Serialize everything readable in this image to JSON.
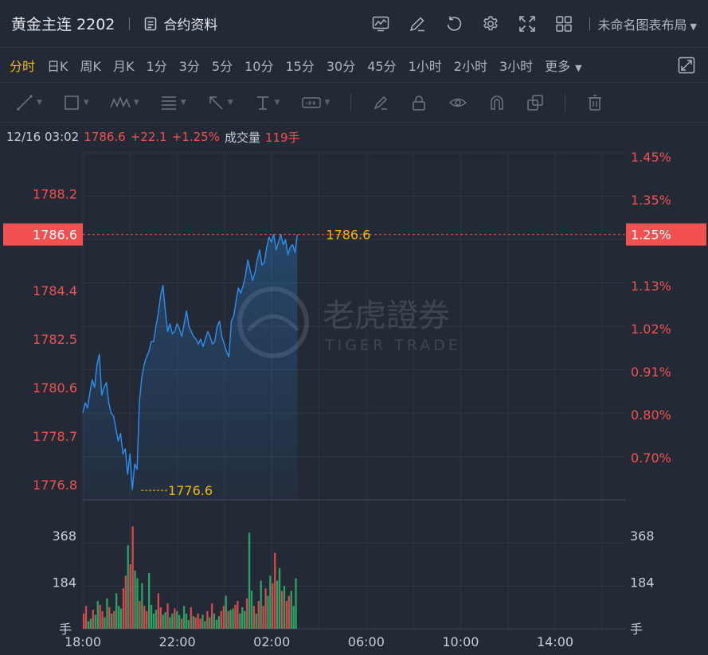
{
  "header": {
    "title": "黄金主连 2202",
    "contract_label": "合约资料",
    "layout_label": "未命名图表布局"
  },
  "periods": {
    "items": [
      "分时",
      "日K",
      "周K",
      "月K",
      "1分",
      "3分",
      "5分",
      "10分",
      "15分",
      "30分",
      "45分",
      "1小时",
      "2小时",
      "3小时"
    ],
    "active_index": 0,
    "more_label": "更多"
  },
  "quote": {
    "datetime": "12/16 03:02",
    "price": "1786.6",
    "change": "+22.1",
    "change_pct": "+1.25%",
    "volume_label": "成交量",
    "volume": "119手"
  },
  "watermark": {
    "cn": "老虎證券",
    "en": "TIGER TRADE"
  },
  "colors": {
    "line": "#2f8ff0",
    "up": "#f25151",
    "down": "#2fb86b",
    "highlight": "#f0b90b",
    "grid": "#2f3644"
  },
  "chart_data": {
    "type": "line",
    "x_ticks": [
      "18:00",
      "22:00",
      "02:00",
      "06:00",
      "10:00",
      "14:00"
    ],
    "y_ticks": [
      1776.8,
      1778.7,
      1780.6,
      1782.5,
      1784.4,
      1788.2
    ],
    "y_pct_ticks": [
      "1.45%",
      "1.35%",
      "1.13%",
      "1.02%",
      "0.91%",
      "0.80%",
      "0.70%"
    ],
    "ylim": [
      1776.2,
      1789.8
    ],
    "current": {
      "value": 1786.6,
      "label": "1786.6",
      "pct": "1.25%"
    },
    "low": {
      "value": 1776.6,
      "label": "1776.6",
      "x_minutes": 120
    },
    "session_minutes": 1380,
    "elapsed_minutes": 545,
    "price_series_every_5min": [
      1779.6,
      1780.0,
      1779.8,
      1780.4,
      1780.9,
      1780.6,
      1781.5,
      1781.9,
      1780.3,
      1780.6,
      1780.8,
      1780.0,
      1779.6,
      1779.5,
      1779.0,
      1778.5,
      1778.8,
      1778.0,
      1778.2,
      1777.2,
      1778.0,
      1776.6,
      1777.6,
      1777.4,
      1780.0,
      1781.0,
      1781.5,
      1781.8,
      1782.0,
      1782.4,
      1782.4,
      1783.0,
      1783.5,
      1784.2,
      1784.6,
      1783.6,
      1782.8,
      1783.1,
      1782.7,
      1782.8,
      1783.1,
      1782.9,
      1782.6,
      1783.1,
      1783.6,
      1783.0,
      1782.8,
      1782.6,
      1782.5,
      1782.3,
      1782.5,
      1782.2,
      1782.5,
      1782.8,
      1782.6,
      1782.3,
      1782.4,
      1783.0,
      1783.2,
      1782.6,
      1782.3,
      1782.0,
      1781.8,
      1783.2,
      1783.4,
      1784.0,
      1784.5,
      1784.3,
      1784.6,
      1785.0,
      1785.6,
      1785.2,
      1784.8,
      1785.1,
      1785.6,
      1786.0,
      1785.4,
      1785.5,
      1786.1,
      1786.5,
      1786.3,
      1786.6,
      1786.0,
      1786.3,
      1786.6,
      1786.2,
      1786.4,
      1785.8,
      1786.1,
      1786.2,
      1785.9,
      1786.6
    ],
    "volume_y_ticks": [
      184,
      368
    ],
    "volume_unit": "手",
    "volume_ylim": [
      0,
      510
    ],
    "volume_series_every_5min": [
      60,
      90,
      30,
      40,
      75,
      55,
      110,
      95,
      70,
      45,
      120,
      85,
      60,
      70,
      140,
      90,
      80,
      160,
      210,
      330,
      255,
      405,
      230,
      200,
      110,
      180,
      90,
      70,
      220,
      95,
      60,
      75,
      140,
      85,
      55,
      65,
      100,
      45,
      60,
      80,
      70,
      55,
      40,
      90,
      60,
      35,
      85,
      50,
      45,
      60,
      40,
      55,
      30,
      70,
      45,
      100,
      60,
      35,
      50,
      70,
      90,
      130,
      70,
      75,
      80,
      95,
      110,
      60,
      85,
      70,
      120,
      380,
      150,
      90,
      60,
      110,
      190,
      90,
      160,
      130,
      210,
      180,
      300,
      190,
      240,
      150,
      170,
      110,
      130,
      150,
      90,
      200
    ],
    "volume_direction_every_5min": "uuddudduuddududdduuduudduduudddduudduddudduddduduuuddududdduududduuddduddududuudduudduduu"
  }
}
